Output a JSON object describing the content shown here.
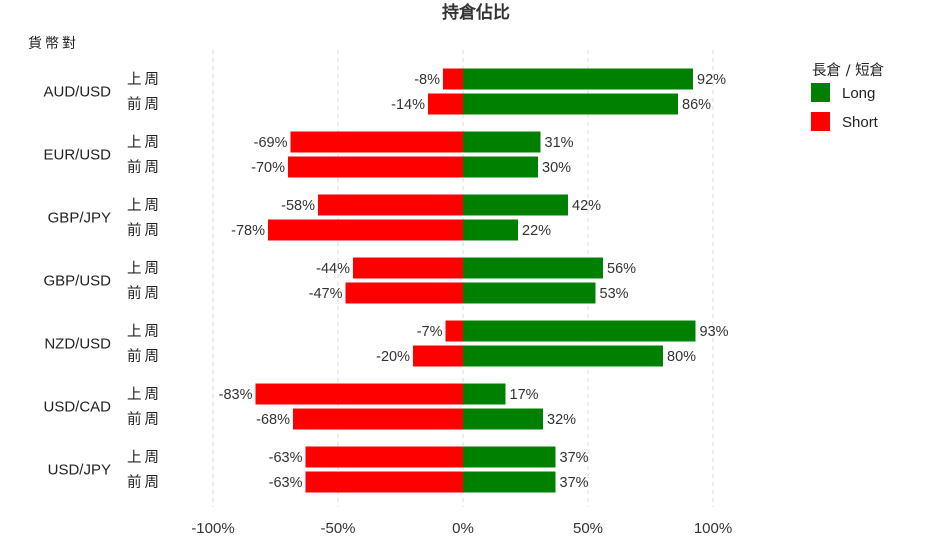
{
  "chart_data": {
    "type": "bar",
    "orientation": "horizontal",
    "stacked": "diverging",
    "title": "持倉佔比",
    "ylabel": "貨幣對",
    "xlim": [
      -100,
      100
    ],
    "x_ticks": [
      "-100%",
      "-50%",
      "0%",
      "50%",
      "100%"
    ],
    "x_tick_values": [
      -100,
      -50,
      0,
      50,
      100
    ],
    "grid": "vertical dashed",
    "legend": {
      "title": "長倉 / 短倉",
      "placement": "top-right",
      "items": [
        {
          "label": "Long",
          "color": "#008000"
        },
        {
          "label": "Short",
          "color": "#ff0000"
        }
      ]
    },
    "periods": [
      "上周",
      "前周"
    ],
    "pairs": [
      {
        "name": "AUD/USD",
        "rows": [
          {
            "period": "上周",
            "long": 92,
            "short": -8
          },
          {
            "period": "前周",
            "long": 86,
            "short": -14
          }
        ]
      },
      {
        "name": "EUR/USD",
        "rows": [
          {
            "period": "上周",
            "long": 31,
            "short": -69
          },
          {
            "period": "前周",
            "long": 30,
            "short": -70
          }
        ]
      },
      {
        "name": "GBP/JPY",
        "rows": [
          {
            "period": "上周",
            "long": 42,
            "short": -58
          },
          {
            "period": "前周",
            "long": 22,
            "short": -78
          }
        ]
      },
      {
        "name": "GBP/USD",
        "rows": [
          {
            "period": "上周",
            "long": 56,
            "short": -44
          },
          {
            "period": "前周",
            "long": 53,
            "short": -47
          }
        ]
      },
      {
        "name": "NZD/USD",
        "rows": [
          {
            "period": "上周",
            "long": 93,
            "short": -7
          },
          {
            "period": "前周",
            "long": 80,
            "short": -20
          }
        ]
      },
      {
        "name": "USD/CAD",
        "rows": [
          {
            "period": "上周",
            "long": 17,
            "short": -83
          },
          {
            "period": "前周",
            "long": 32,
            "short": -68
          }
        ]
      },
      {
        "name": "USD/JPY",
        "rows": [
          {
            "period": "上周",
            "long": 37,
            "short": -63
          },
          {
            "period": "前周",
            "long": 37,
            "short": -63
          }
        ]
      }
    ],
    "colors": {
      "long": "#008000",
      "short": "#ff0000"
    }
  }
}
